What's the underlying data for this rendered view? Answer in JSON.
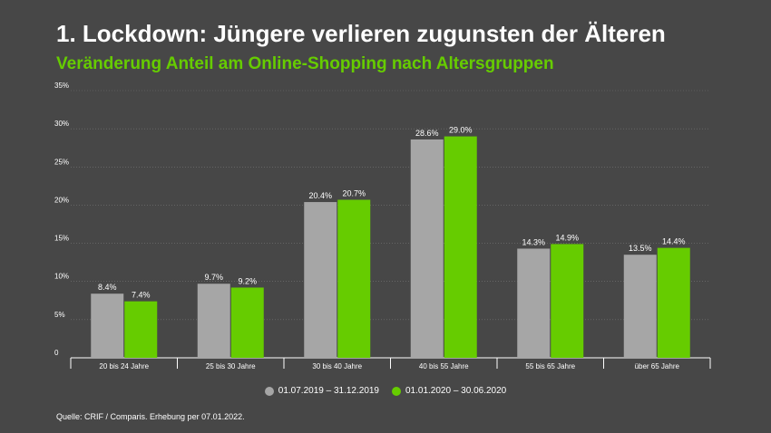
{
  "title": "1. Lockdown: Jüngere verlieren zugunsten der Älteren",
  "subtitle": "Veränderung Anteil am Online-Shopping nach Altersgruppen",
  "source": "Quelle: CRIF / Comparis. Erhebung per 07.01.2022.",
  "colors": {
    "background": "#474747",
    "series1": "#a6a6a6",
    "series2": "#66cc00",
    "grid": "#777777"
  },
  "chart_data": {
    "type": "bar",
    "categories": [
      "20 bis 24 Jahre",
      "25 bis 30 Jahre",
      "30 bis 40 Jahre",
      "40 bis 55 Jahre",
      "55 bis 65 Jahre",
      "über 65 Jahre"
    ],
    "series": [
      {
        "name": "01.07.2019 – 31.12.2019",
        "values": [
          8.4,
          9.7,
          20.4,
          28.6,
          14.3,
          13.5
        ],
        "labels": [
          "8.4%",
          "9.7%",
          "20.4%",
          "28.6%",
          "14.3%",
          "13.5%"
        ],
        "color": "#a6a6a6"
      },
      {
        "name": "01.01.2020 – 30.06.2020",
        "values": [
          7.4,
          9.2,
          20.7,
          29.0,
          14.9,
          14.4
        ],
        "labels": [
          "7.4%",
          "9.2%",
          "20.7%",
          "29.0%",
          "14.9%",
          "14.4%"
        ],
        "color": "#66cc00"
      }
    ],
    "ylim": [
      0,
      35
    ],
    "yticks": [
      0,
      5,
      10,
      15,
      20,
      25,
      30,
      35
    ],
    "ytick_labels": [
      "0",
      "5%",
      "10%",
      "15%",
      "20%",
      "25%",
      "30%",
      "35%"
    ],
    "grid": true,
    "legend_position": "bottom-center"
  }
}
